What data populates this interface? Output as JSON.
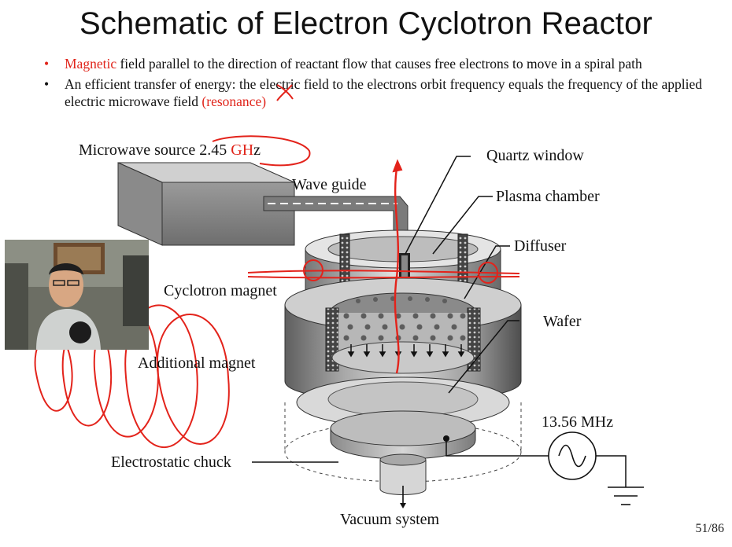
{
  "title": "Schematic of Electron Cyclotron Reactor",
  "bullet_marker": "•",
  "bullets": [
    {
      "highlight": "Magnetic",
      "text": "field parallel to the direction of reactant flow that causes free electrons to move in a spiral path"
    },
    {
      "text": "An efficient transfer of energy: the electric field to the electrons orbit frequency equals the frequency of the applied electric microwave field ",
      "highlight": "(resonance)"
    }
  ],
  "diagram": {
    "microwave_source": {
      "prefix": "Microwave source",
      "freq_num": "2.45",
      "freq_red": "GH",
      "freq_tail": "z"
    },
    "wave_guide": "Wave guide",
    "quartz_window": "Quartz window",
    "plasma_chamber": "Plasma chamber",
    "diffuser": "Diffuser",
    "cyclotron_magnet": "Cyclotron magnet",
    "wafer": "Wafer",
    "additional_magnet": "Additional magnet",
    "rf_frequency": "13.56 MHz",
    "electrostatic_chuck": "Electrostatic chuck",
    "vacuum_system": "Vacuum system"
  },
  "colors": {
    "accent_red": "#e0251b",
    "text": "#111111",
    "background": "#ffffff"
  },
  "page_number": "51/86"
}
